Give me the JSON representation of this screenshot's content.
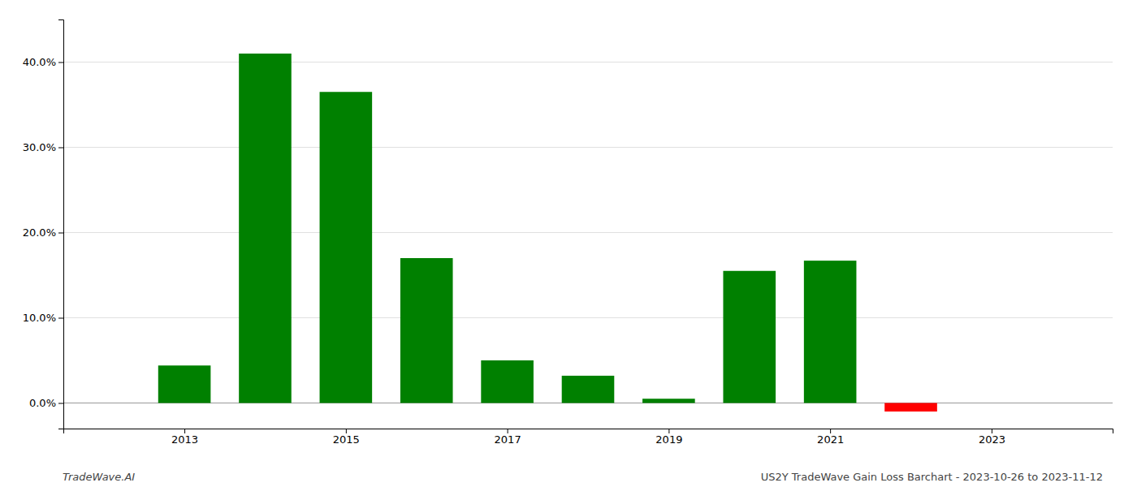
{
  "chart_data": {
    "type": "bar",
    "x": [
      2013,
      2014,
      2015,
      2016,
      2017,
      2018,
      2019,
      2020,
      2021,
      2022
    ],
    "values": [
      0.044,
      0.41,
      0.365,
      0.17,
      0.05,
      0.032,
      0.005,
      0.155,
      0.167,
      -0.01
    ],
    "colors": [
      "#008000",
      "#008000",
      "#008000",
      "#008000",
      "#008000",
      "#008000",
      "#008000",
      "#008000",
      "#008000",
      "#ff0000"
    ],
    "xlim": [
      2011.5,
      2024.5
    ],
    "xticks": [
      2013,
      2015,
      2017,
      2019,
      2021,
      2023
    ],
    "ylim": [
      -0.03,
      0.45
    ],
    "yticks": [
      {
        "value": 0.0,
        "label": "0.0%"
      },
      {
        "value": 0.1,
        "label": "10.0%"
      },
      {
        "value": 0.2,
        "label": "20.0%"
      },
      {
        "value": 0.3,
        "label": "30.0%"
      },
      {
        "value": 0.4,
        "label": "40.0%"
      }
    ],
    "grid": true,
    "annotations": [
      "TradeWave.AI",
      "US2Y TradeWave Gain Loss Barchart - 2023-10-26 to 2023-11-12"
    ]
  }
}
